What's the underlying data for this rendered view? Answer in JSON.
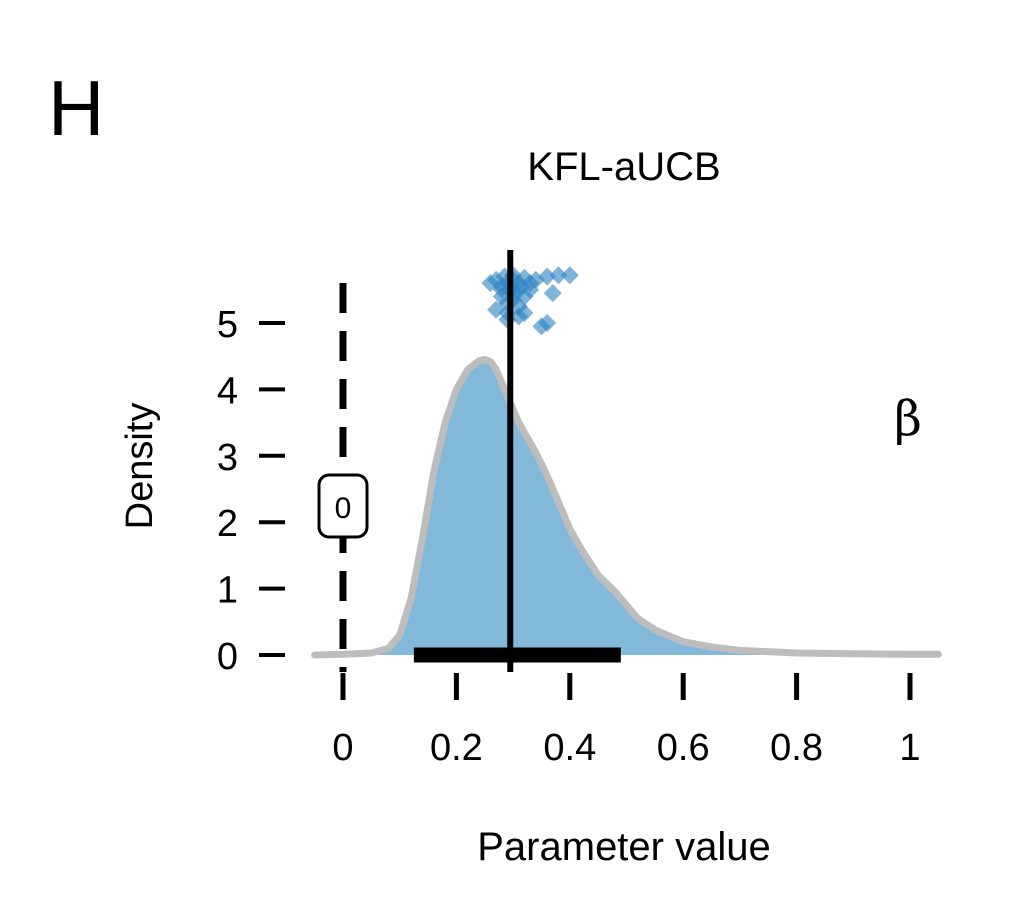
{
  "panel_label": "H",
  "chart_data": {
    "type": "area",
    "title": "KFL-aUCB",
    "xlabel": "Parameter value",
    "ylabel": "Density",
    "parameter_symbol": "β",
    "xlim": [
      -0.05,
      1.05
    ],
    "ylim": [
      0,
      5.7
    ],
    "x_ticks": [
      0,
      0.2,
      0.4,
      0.6,
      0.8,
      1
    ],
    "x_tick_labels": [
      "0",
      "0.2",
      "0.4",
      "0.6",
      "0.8",
      "1"
    ],
    "y_ticks": [
      0,
      1,
      2,
      3,
      4,
      5
    ],
    "y_tick_labels": [
      "0",
      "1",
      "2",
      "3",
      "4",
      "5"
    ],
    "zero_marker_label": "0",
    "zero_line_x": 0,
    "estimate_x": 0.295,
    "interval": [
      0.125,
      0.49
    ],
    "density": {
      "x": [
        -0.05,
        0.0,
        0.05,
        0.08,
        0.1,
        0.12,
        0.14,
        0.16,
        0.18,
        0.2,
        0.22,
        0.24,
        0.25,
        0.26,
        0.27,
        0.28,
        0.29,
        0.3,
        0.31,
        0.32,
        0.34,
        0.36,
        0.38,
        0.4,
        0.42,
        0.45,
        0.48,
        0.5,
        0.52,
        0.55,
        0.58,
        0.6,
        0.65,
        0.7,
        0.8,
        0.9,
        1.0,
        1.05
      ],
      "y": [
        0.0,
        0.01,
        0.03,
        0.1,
        0.3,
        0.85,
        1.75,
        2.75,
        3.5,
        4.0,
        4.3,
        4.43,
        4.45,
        4.42,
        4.3,
        4.1,
        3.9,
        3.7,
        3.5,
        3.35,
        3.05,
        2.7,
        2.3,
        1.9,
        1.6,
        1.2,
        0.95,
        0.75,
        0.55,
        0.38,
        0.27,
        0.2,
        0.12,
        0.07,
        0.03,
        0.02,
        0.01,
        0.01
      ]
    },
    "fill_color": "#82b8da",
    "outline_color": "#bdbdbd",
    "points": {
      "color": "#2f85c4",
      "x": [
        0.26,
        0.27,
        0.28,
        0.285,
        0.29,
        0.295,
        0.3,
        0.305,
        0.31,
        0.315,
        0.32,
        0.33,
        0.28,
        0.29,
        0.3,
        0.31,
        0.27,
        0.29,
        0.3,
        0.32,
        0.34,
        0.3,
        0.33,
        0.36,
        0.38,
        0.4,
        0.37,
        0.36,
        0.31,
        0.32,
        0.35,
        0.29,
        0.3,
        0.28
      ],
      "y": [
        5.6,
        5.65,
        5.55,
        5.7,
        5.6,
        5.5,
        5.65,
        5.45,
        5.6,
        5.55,
        5.68,
        5.5,
        5.4,
        5.3,
        5.35,
        5.25,
        5.2,
        5.15,
        5.45,
        5.4,
        5.65,
        5.72,
        5.6,
        5.7,
        5.72,
        5.72,
        5.45,
        5.0,
        5.1,
        5.15,
        4.95,
        5.05,
        5.55,
        5.5
      ]
    }
  }
}
